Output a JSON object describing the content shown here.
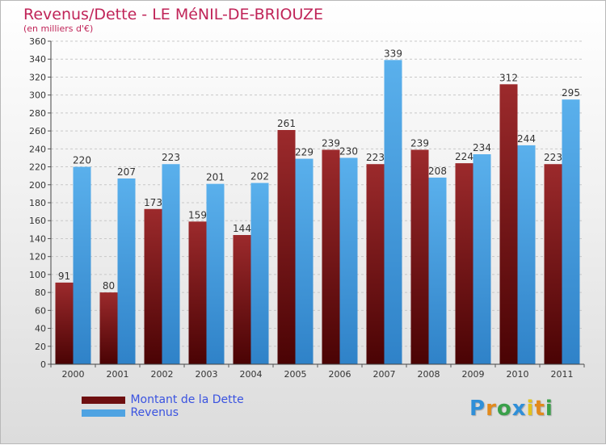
{
  "header": {
    "title": "Revenus/Dette - LE MéNIL-DE-BRIOUZE",
    "subtitle": "(en milliers d'€)"
  },
  "chart_data": {
    "type": "bar",
    "title": "Revenus/Dette - LE MéNIL-DE-BRIOUZE",
    "ylabel": "(en milliers d'€)",
    "categories": [
      "2000",
      "2001",
      "2002",
      "2003",
      "2004",
      "2005",
      "2006",
      "2007",
      "2008",
      "2009",
      "2010",
      "2011"
    ],
    "series": [
      {
        "name": "Montant de la Dette",
        "color": "#7a1416",
        "values": [
          91,
          80,
          173,
          159,
          144,
          261,
          239,
          223,
          239,
          224,
          312,
          223
        ]
      },
      {
        "name": "Revenus",
        "color": "#4fa3e2",
        "values": [
          220,
          207,
          223,
          201,
          202,
          229,
          230,
          339,
          208,
          234,
          244,
          295
        ]
      }
    ],
    "ylim": [
      0,
      360
    ],
    "yticks": [
      0,
      20,
      40,
      60,
      80,
      100,
      120,
      140,
      160,
      180,
      200,
      220,
      240,
      260,
      280,
      300,
      320,
      340,
      360
    ],
    "grid": true,
    "legend_position": "bottom-left"
  },
  "legend": {
    "items": [
      {
        "label": "Montant de la Dette",
        "color": "#6e0f10"
      },
      {
        "label": "Revenus",
        "color": "#4fa3e2"
      }
    ]
  },
  "logo": {
    "letters": [
      {
        "ch": "P",
        "color": "#2f8fd8"
      },
      {
        "ch": "r",
        "color": "#e28a1c"
      },
      {
        "ch": "o",
        "color": "#3aa04a"
      },
      {
        "ch": "x",
        "color": "#2f8fd8"
      },
      {
        "ch": "i",
        "color": "#e2c21c"
      },
      {
        "ch": "t",
        "color": "#e28a1c"
      },
      {
        "ch": "i",
        "color": "#3aa04a"
      }
    ]
  }
}
